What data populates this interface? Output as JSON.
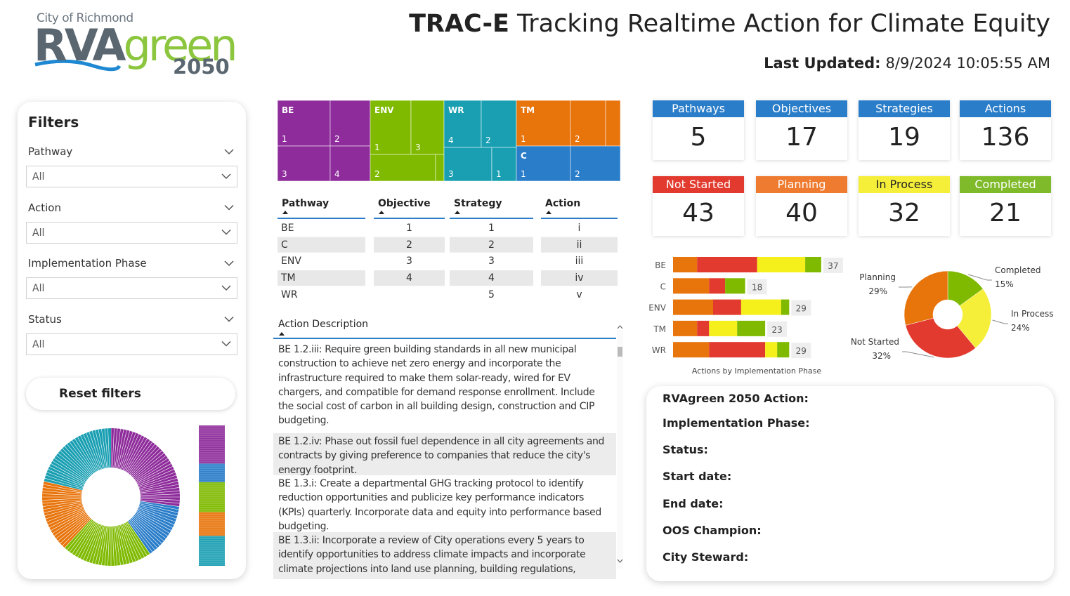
{
  "logo": {
    "city": "City of Richmond",
    "rva": "RVA",
    "green": "green",
    "year": "2050"
  },
  "header": {
    "title_bold": "TRAC-E",
    "title_rest": "Tracking Realtime Action for Climate Equity",
    "updated_label": "Last Updated:",
    "updated_value": "8/9/2024 10:05:55 AM"
  },
  "filters": {
    "title": "Filters",
    "items": [
      {
        "label": "Pathway",
        "value": "All"
      },
      {
        "label": "Action",
        "value": "All"
      },
      {
        "label": "Implementation Phase",
        "value": "All"
      },
      {
        "label": "Status",
        "value": "All"
      }
    ],
    "reset": "Reset filters"
  },
  "treemap": [
    {
      "name": "BE",
      "color": "#8e2c9b",
      "cells": [
        "1",
        "2",
        "3",
        "4"
      ]
    },
    {
      "name": "ENV",
      "color": "#7fba00",
      "cells": [
        "1",
        "3",
        "2",
        null
      ]
    },
    {
      "name": "WR",
      "color": "#1a9fb2",
      "cells": [
        "4",
        "2",
        "3",
        "1"
      ]
    },
    {
      "name": "TM",
      "color": "#e8740c",
      "cells": [
        "1",
        "2",
        null
      ]
    },
    {
      "name": "C",
      "color": "#2a7dc9",
      "cells": [
        "1",
        "2"
      ]
    }
  ],
  "table": {
    "headers": [
      "Pathway",
      "Objective",
      "Strategy",
      "Action"
    ],
    "columns": [
      [
        "BE",
        "C",
        "ENV",
        "TM",
        "WR"
      ],
      [
        1,
        2,
        3,
        4
      ],
      [
        1,
        2,
        3,
        4,
        5
      ],
      [
        "i",
        "ii",
        "iii",
        "iv",
        "v"
      ]
    ]
  },
  "description": {
    "header": "Action Description",
    "items": [
      "BE 1.2.iii: Require green building standards in all new municipal construction to achieve net zero energy and incorporate the infrastructure required to make them solar-ready, wired for EV chargers, and compatible for demand response enrollment. Include the social cost of carbon in all building design, construction and CIP budgeting.",
      "BE 1.2.iv: Phase out fossil fuel dependence in all city agreements and contracts by giving preference to companies that reduce the city's energy footprint.",
      "BE 1.3.i: Create a departmental GHG tracking protocol to identify reduction opportunities and publicize key performance indicators (KPIs) quarterly. Incorporate data and equity into performance based budgeting.",
      "BE 1.3.ii: Incorporate a review of City operations every 5 years to identify opportunities to address climate impacts and incorporate climate projections into land use planning, building regulations,"
    ]
  },
  "cards": [
    {
      "label": "Pathways",
      "value": 5,
      "color": "#2a7dc9"
    },
    {
      "label": "Objectives",
      "value": 17,
      "color": "#2a7dc9"
    },
    {
      "label": "Strategies",
      "value": 19,
      "color": "#2a7dc9"
    },
    {
      "label": "Actions",
      "value": 136,
      "color": "#2a7dc9"
    },
    {
      "label": "Not Started",
      "value": 43,
      "color": "#e23a2e"
    },
    {
      "label": "Planning",
      "value": 40,
      "color": "#ee7b30"
    },
    {
      "label": "In Process",
      "value": 32,
      "color": "#f5ef3a"
    },
    {
      "label": "Completed",
      "value": 21,
      "color": "#7fba2a"
    }
  ],
  "status_bars": {
    "type": "bar",
    "categories": [
      "BE",
      "C",
      "ENV",
      "TM",
      "WR"
    ],
    "series": [
      {
        "color": "#e8740c",
        "values": [
          6,
          9,
          10,
          6,
          9
        ]
      },
      {
        "color": "#e23a2e",
        "values": [
          15,
          4,
          7,
          3,
          14
        ]
      },
      {
        "color": "#f5ef1c",
        "values": [
          12,
          0,
          10,
          7,
          3
        ]
      },
      {
        "color": "#7fba00",
        "values": [
          4,
          5,
          2,
          7,
          3
        ]
      }
    ],
    "totals": [
      37,
      18,
      29,
      23,
      29
    ],
    "caption": "Actions by Implementation Phase"
  },
  "status_donut": {
    "type": "pie",
    "categories": [
      "Completed",
      "In Process",
      "Not Started",
      "Planning"
    ],
    "values": [
      15,
      24,
      32,
      29
    ],
    "value_labels": [
      "15%",
      "24%",
      "32%",
      "29%"
    ],
    "colors": [
      "#7fba00",
      "#f5ef3a",
      "#e23a2e",
      "#e8740c"
    ]
  },
  "details": {
    "labels": [
      "RVAgreen 2050 Action:",
      "Implementation Phase:",
      "Status:",
      "Start date:",
      "End date:",
      "OOS Champion:",
      "City Steward:"
    ]
  }
}
